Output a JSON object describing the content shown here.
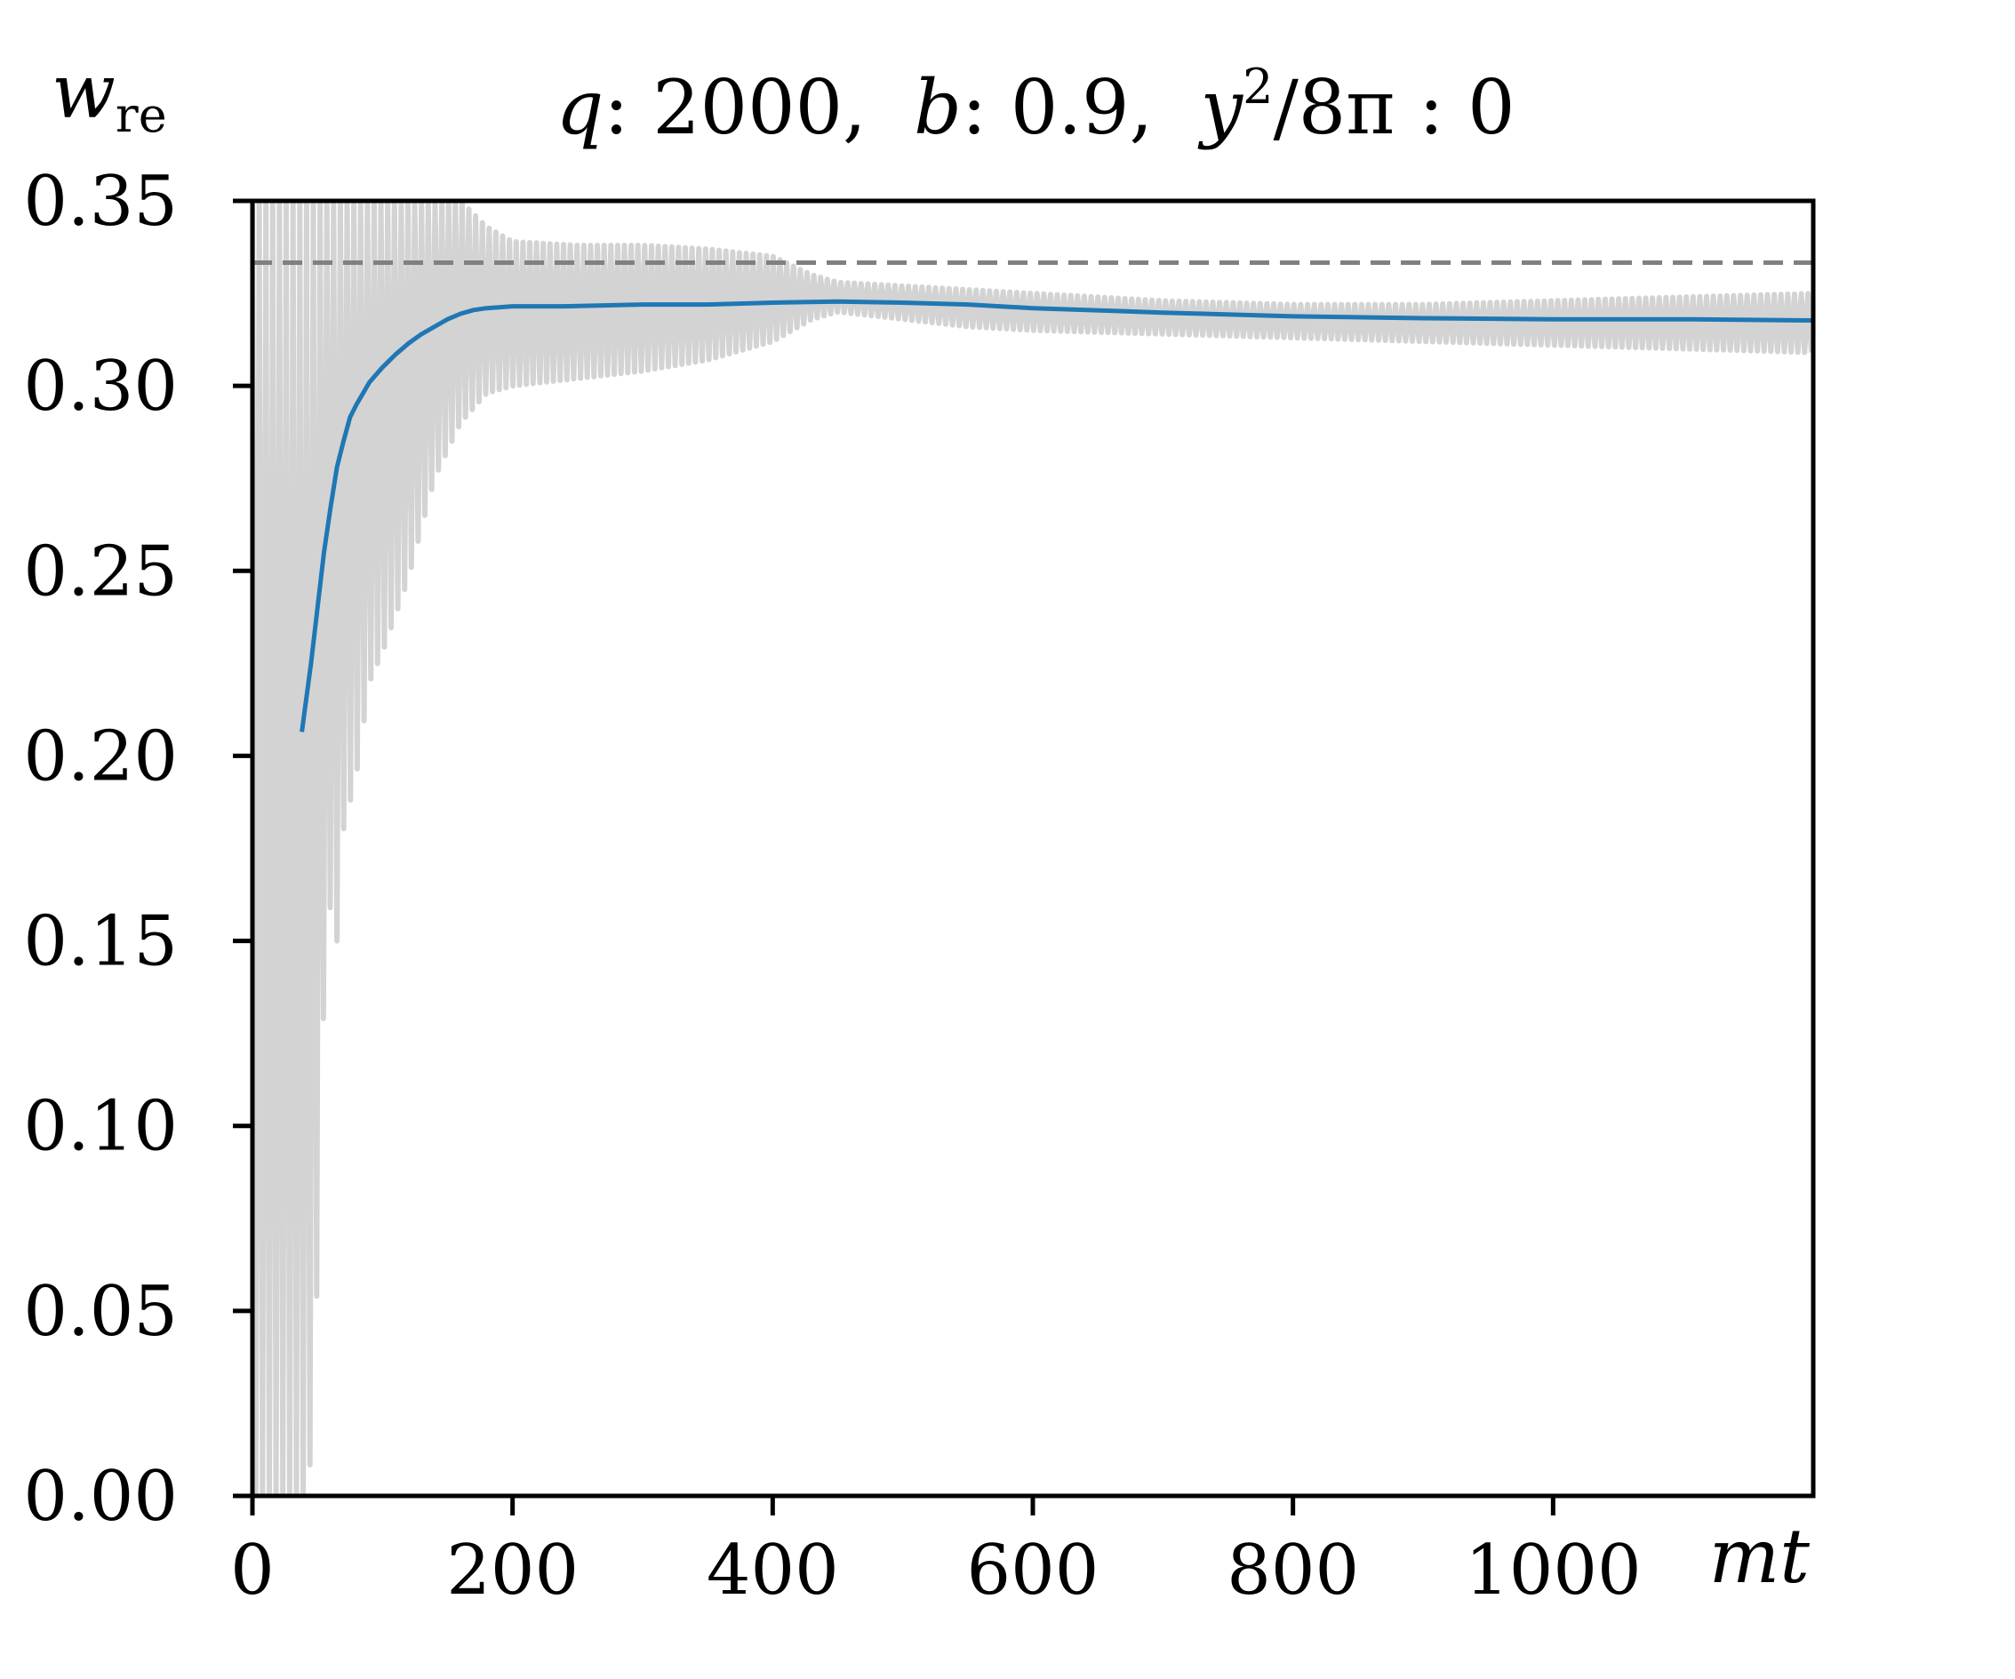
{
  "chart_data": {
    "type": "line",
    "title": {
      "parts": [
        "q",
        ": 2000,  ",
        "b",
        ": 0.9,  ",
        "y",
        "2",
        "/8π : 0"
      ]
    },
    "xlabel": "mt",
    "ylabel": {
      "main": "w",
      "sub": "re"
    },
    "xlim": [
      0,
      1200
    ],
    "ylim": [
      0,
      0.35
    ],
    "xticks": [
      0,
      200,
      400,
      600,
      800,
      1000
    ],
    "xtick_labels": [
      "0",
      "200",
      "400",
      "600",
      "800",
      "1000"
    ],
    "yticks": [
      0,
      0.05,
      0.1,
      0.15,
      0.2,
      0.25,
      0.3,
      0.35
    ],
    "ytick_labels": [
      "0.00",
      "0.05",
      "0.10",
      "0.15",
      "0.20",
      "0.25",
      "0.30",
      "0.35"
    ],
    "grid": false,
    "reference_line": {
      "y": 0.3333,
      "style": "dashed",
      "color": "#808080"
    },
    "series": [
      {
        "role": "raw-oscillating",
        "color": "#d3d3d3",
        "envelope": {
          "x": [
            0,
            40,
            45,
            50,
            55,
            60,
            65,
            70,
            80,
            90,
            100,
            120,
            140,
            160,
            180,
            200,
            250,
            300,
            350,
            400,
            430,
            450,
            500,
            550,
            600,
            700,
            800,
            900,
            1000,
            1100,
            1200
          ],
          "upper": [
            0.35,
            0.35,
            0.35,
            0.35,
            0.35,
            0.35,
            0.35,
            0.35,
            0.35,
            0.35,
            0.35,
            0.35,
            0.35,
            0.35,
            0.343,
            0.339,
            0.338,
            0.338,
            0.337,
            0.335,
            0.33,
            0.328,
            0.327,
            0.326,
            0.325,
            0.323,
            0.322,
            0.322,
            0.323,
            0.324,
            0.325
          ],
          "lower": [
            0.0,
            0.0,
            0.01,
            0.06,
            0.135,
            0.16,
            0.15,
            0.18,
            0.195,
            0.22,
            0.228,
            0.248,
            0.275,
            0.29,
            0.298,
            0.3,
            0.302,
            0.304,
            0.307,
            0.312,
            0.318,
            0.32,
            0.318,
            0.316,
            0.315,
            0.314,
            0.313,
            0.312,
            0.311,
            0.31,
            0.309
          ]
        }
      },
      {
        "role": "average",
        "color": "#1f77b4",
        "x": [
          38,
          45,
          50,
          55,
          60,
          65,
          70,
          75,
          80,
          90,
          100,
          110,
          120,
          130,
          140,
          150,
          160,
          170,
          180,
          200,
          240,
          300,
          350,
          400,
          450,
          500,
          550,
          600,
          700,
          800,
          900,
          1000,
          1100,
          1200
        ],
        "y": [
          0.2065,
          0.225,
          0.24,
          0.255,
          0.267,
          0.278,
          0.285,
          0.2915,
          0.295,
          0.301,
          0.305,
          0.3085,
          0.3115,
          0.314,
          0.316,
          0.318,
          0.3195,
          0.3205,
          0.321,
          0.3215,
          0.3215,
          0.322,
          0.322,
          0.3225,
          0.3228,
          0.3225,
          0.322,
          0.321,
          0.3198,
          0.3188,
          0.3183,
          0.318,
          0.318,
          0.3177
        ]
      }
    ]
  }
}
